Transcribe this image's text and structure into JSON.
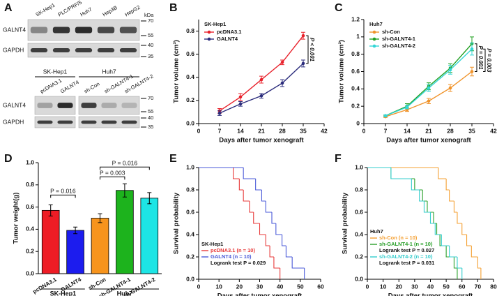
{
  "blot": {
    "panel": "A",
    "top": {
      "lanes": [
        "SK-Hep1",
        "PLC/PRF/5",
        "Huh7",
        "Hep3B",
        "HepG2"
      ],
      "rows": [
        "GALNT4",
        "GAPDH"
      ],
      "markers": [
        "kDa",
        "70",
        "55",
        "40",
        "35"
      ]
    },
    "bottom": {
      "groups": [
        "SK-Hep1",
        "Huh7"
      ],
      "lanes": [
        "pcDNA3.1",
        "GALNT4",
        "sh-Con",
        "sh-GALNT4-1",
        "sh-GALNT4-2"
      ],
      "rows": [
        "GALNT4",
        "GAPDH"
      ],
      "markers": [
        "70",
        "55",
        "40",
        "35"
      ]
    }
  },
  "chart_data": [
    {
      "panel": "B",
      "type": "line",
      "title": "SK-Hep1",
      "xlabel": "Days after tumor xenograft",
      "ylabel": "Tumor volume (cm³)",
      "x": [
        7,
        14,
        21,
        28,
        35
      ],
      "xlim": [
        0,
        42
      ],
      "xticks": [
        0,
        7,
        14,
        21,
        28,
        35,
        42
      ],
      "ylim": [
        0,
        0.9
      ],
      "yticks": [
        {
          "value": 0,
          "label": "0.0"
        },
        0.2,
        0.4,
        0.6,
        0.8
      ],
      "series": [
        {
          "name": "pcDNA3.1",
          "color": "#e8202a",
          "values": [
            0.11,
            0.23,
            0.38,
            0.53,
            0.76
          ],
          "errors": [
            0.02,
            0.03,
            0.03,
            0.02,
            0.03
          ]
        },
        {
          "name": "GALNT4",
          "color": "#2b2c7c",
          "values": [
            0.09,
            0.17,
            0.24,
            0.35,
            0.52
          ],
          "errors": [
            0.02,
            0.02,
            0.02,
            0.03,
            0.03
          ]
        }
      ],
      "annotations": [
        "P < 0.001"
      ],
      "legend": "upper left"
    },
    {
      "panel": "C",
      "type": "line",
      "title": "Huh7",
      "xlabel": "Days after tumor xenograft",
      "ylabel": "Tumor volume (cm³)",
      "x": [
        7,
        14,
        21,
        28,
        35
      ],
      "xlim": [
        0,
        42
      ],
      "xticks": [
        0,
        7,
        14,
        21,
        28,
        35,
        42
      ],
      "ylim": [
        0,
        1.2
      ],
      "yticks": [
        0,
        0.2,
        0.4,
        0.6,
        0.8,
        1,
        1.2
      ],
      "series": [
        {
          "name": "sh-Con",
          "color": "#f0932a",
          "values": [
            0.08,
            0.16,
            0.26,
            0.41,
            0.6
          ],
          "errors": [
            0.01,
            0.02,
            0.03,
            0.04,
            0.05
          ]
        },
        {
          "name": "sh-GALNT4-1",
          "color": "#22a022",
          "values": [
            0.09,
            0.2,
            0.43,
            0.64,
            0.92
          ],
          "errors": [
            0.01,
            0.03,
            0.04,
            0.05,
            0.08
          ]
        },
        {
          "name": "sh-GALNT4-2",
          "color": "#33d6d6",
          "values": [
            0.09,
            0.19,
            0.41,
            0.62,
            0.86
          ],
          "errors": [
            0.01,
            0.02,
            0.04,
            0.05,
            0.07
          ]
        }
      ],
      "annotations": [
        "P = 0.001",
        "P = 0.003"
      ],
      "legend": "upper left"
    },
    {
      "panel": "D",
      "type": "bar",
      "ylabel": "Tumor weight(g)",
      "categories": [
        "pcDNA3.1",
        "GALNT4",
        "sh-Con",
        "sh-GALNT4-1",
        "sh-GALNT4-2"
      ],
      "values": [
        0.57,
        0.39,
        0.5,
        0.75,
        0.68
      ],
      "errors": [
        0.05,
        0.03,
        0.04,
        0.06,
        0.05
      ],
      "colors": [
        "#ee1c25",
        "#1c1cee",
        "#f7941d",
        "#1db31d",
        "#1de5e5"
      ],
      "groups": [
        "SK-Hep1",
        "Huh7"
      ],
      "ylim": [
        0,
        1.0
      ],
      "yticks": [
        {
          "value": 0,
          "label": "0.0"
        },
        0.2,
        0.4,
        0.6,
        0.8,
        {
          "value": 1,
          "label": "1.0"
        }
      ],
      "annotations": [
        "P = 0.016",
        "P = 0.003",
        "P = 0.016"
      ]
    },
    {
      "panel": "E",
      "type": "survival",
      "title": "SK-Hep1",
      "xlabel": "Days after tumor xenograft",
      "ylabel": "Survival probability",
      "xlim": [
        0,
        60
      ],
      "xticks": [
        0,
        10,
        20,
        30,
        40,
        50,
        60
      ],
      "ylim": [
        0,
        1.0
      ],
      "yticks": [
        {
          "value": 0,
          "label": "0.0"
        },
        0.2,
        0.4,
        0.6,
        0.8,
        {
          "value": 1,
          "label": "1.0"
        }
      ],
      "series": [
        {
          "name": "pcDNA3.1 (n = 10)",
          "color": "#e83a3a",
          "x": [
            0,
            17,
            20,
            22,
            25,
            27,
            30,
            33,
            35,
            37,
            40
          ],
          "values": [
            1,
            0.9,
            0.8,
            0.7,
            0.6,
            0.5,
            0.4,
            0.3,
            0.2,
            0.1,
            0
          ]
        },
        {
          "name": "GALNT4 (n = 10)",
          "color": "#4a5ad8",
          "x": [
            0,
            22,
            28,
            31,
            33,
            36,
            38,
            41,
            43,
            46,
            52
          ],
          "values": [
            1,
            0.9,
            0.8,
            0.7,
            0.6,
            0.5,
            0.4,
            0.3,
            0.2,
            0.1,
            0
          ],
          "note": "Logrank test P = 0.029"
        }
      ],
      "legend": "lower left"
    },
    {
      "panel": "F",
      "type": "survival",
      "title": "Huh7",
      "xlabel": "Days after tumor xenograft",
      "ylabel": "Survival probability",
      "xlim": [
        0,
        80
      ],
      "xticks": [
        0,
        10,
        20,
        30,
        40,
        50,
        60,
        70,
        80
      ],
      "ylim": [
        0,
        1.0
      ],
      "yticks": [
        {
          "value": 0,
          "label": "0.0"
        },
        0.2,
        0.4,
        0.6,
        0.8,
        {
          "value": 1,
          "label": "1.0"
        }
      ],
      "series": [
        {
          "name": "sh-Con (n = 10)",
          "color": "#f4a033",
          "x": [
            0,
            45,
            50,
            52,
            55,
            57,
            60,
            63,
            66,
            70,
            72
          ],
          "values": [
            1,
            0.9,
            0.8,
            0.7,
            0.6,
            0.5,
            0.4,
            0.3,
            0.2,
            0.1,
            0
          ]
        },
        {
          "name": "sh-GALNT4-1 (n = 10)",
          "color": "#2aa02a",
          "x": [
            0,
            15,
            30,
            35,
            38,
            42,
            44,
            46,
            50,
            55,
            57
          ],
          "values": [
            1,
            0.9,
            0.8,
            0.7,
            0.6,
            0.5,
            0.4,
            0.3,
            0.2,
            0.1,
            0
          ],
          "note": "Logrank test P = 0.027"
        },
        {
          "name": "sh-GALNT4-2 (n = 10)",
          "color": "#33cccc",
          "x": [
            0,
            15,
            28,
            33,
            36,
            40,
            43,
            47,
            52,
            57,
            60
          ],
          "values": [
            1,
            0.9,
            0.8,
            0.7,
            0.6,
            0.5,
            0.4,
            0.3,
            0.2,
            0.1,
            0
          ],
          "note": "Logrank test P = 0.031"
        }
      ],
      "legend": "lower left"
    }
  ]
}
